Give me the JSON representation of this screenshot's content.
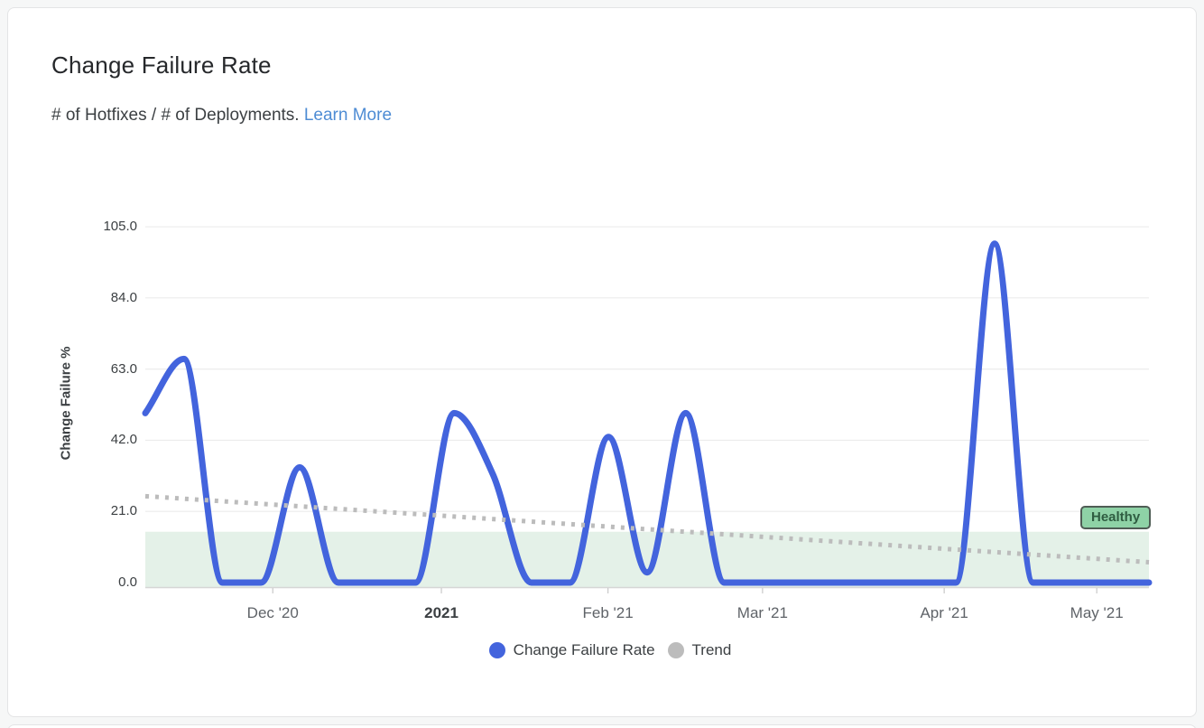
{
  "header": {
    "title": "Change Failure Rate",
    "subtitle": "# of Hotfixes / # of Deployments.",
    "learn_more_label": "Learn More"
  },
  "colors": {
    "accent_blue": "#4364dd",
    "trend_gray": "#bcbcbc",
    "gridline": "#ececec",
    "axis_line": "#d6d6d6",
    "band_fill": "#e4f1e8",
    "badge_bg": "#8ed2a6",
    "badge_border": "#4f5d55",
    "badge_text": "#2f5d41",
    "link_blue": "#4e8cd4"
  },
  "chart_data": {
    "type": "line",
    "title": "Change Failure Rate",
    "xlabel": "",
    "ylabel": "Change Failure %",
    "ylim": [
      0,
      105
    ],
    "grid": true,
    "legend_position": "bottom",
    "y_ticks": [
      {
        "value": 105,
        "label": "105.0"
      },
      {
        "value": 84,
        "label": "84.0"
      },
      {
        "value": 63,
        "label": "63.0"
      },
      {
        "value": 42,
        "label": "42.0"
      },
      {
        "value": 21,
        "label": "21.0"
      },
      {
        "value": 0,
        "label": "0.0"
      }
    ],
    "x_ticks": [
      {
        "label": "Dec '20",
        "pos": 0.127,
        "bold": false
      },
      {
        "label": "2021",
        "pos": 0.295,
        "bold": true
      },
      {
        "label": "Feb '21",
        "pos": 0.461,
        "bold": false
      },
      {
        "label": "Mar '21",
        "pos": 0.615,
        "bold": false
      },
      {
        "label": "Apr '21",
        "pos": 0.796,
        "bold": false
      },
      {
        "label": "May '21",
        "pos": 0.948,
        "bold": false
      }
    ],
    "series": [
      {
        "name": "Change Failure Rate",
        "color": "#4364dd",
        "line_style": "solid",
        "interpolation": "spline",
        "x_frac": [
          0,
          0.0385,
          0.0769,
          0.1154,
          0.1538,
          0.1923,
          0.2308,
          0.2692,
          0.3077,
          0.3462,
          0.3846,
          0.4231,
          0.4615,
          0.5,
          0.5385,
          0.5769,
          0.6154,
          0.6538,
          0.6923,
          0.7308,
          0.7692,
          0.8077,
          0.8462,
          0.8846,
          0.9231,
          0.9615,
          1
        ],
        "values": [
          50,
          66,
          0,
          0,
          34,
          0,
          0,
          0,
          50,
          32,
          0,
          0,
          43,
          3,
          50,
          0,
          0,
          0,
          0,
          0,
          0,
          0,
          100,
          0,
          0,
          0,
          0
        ]
      },
      {
        "name": "Trend",
        "color": "#bcbcbc",
        "line_style": "dotted",
        "interpolation": "linear",
        "x_frac": [
          0,
          1
        ],
        "values": [
          25.5,
          6
        ]
      }
    ],
    "healthy_band": {
      "label": "Healthy",
      "from": 0,
      "to": 15
    },
    "legend": [
      {
        "label": "Change Failure Rate",
        "color": "#4364dd"
      },
      {
        "label": "Trend",
        "color": "#bcbcbc"
      }
    ]
  }
}
